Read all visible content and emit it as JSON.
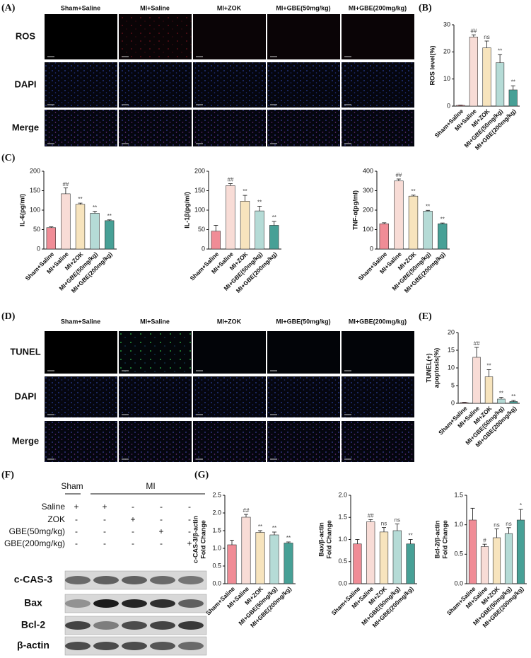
{
  "panels": {
    "A": "(A)",
    "B": "(B)",
    "C": "(C)",
    "D": "(D)",
    "E": "(E)",
    "F": "(F)",
    "G": "(G)"
  },
  "micrographs": [
    {
      "columns": [
        "Sham+Saline",
        "MI+Saline",
        "MI+ZOK",
        "MI+GBE(50mg/kg)",
        "MI+GBE(200mg/kg)"
      ],
      "rows": [
        "ROS",
        "DAPI",
        "Merge"
      ]
    },
    {
      "columns": [
        "Sham+Saline",
        "MI+Saline",
        "MI+ZOK",
        "MI+GBE(50mg/kg)",
        "MI+GBE(200mg/kg)"
      ],
      "rows": [
        "TUNEL",
        "DAPI",
        "Merge"
      ]
    }
  ],
  "western_blot": {
    "groups": [
      "Sham",
      "MI"
    ],
    "treatments": [
      "Saline",
      "ZOK",
      "GBE(50mg/kg)",
      "GBE(200mg/kg)"
    ],
    "matrix": [
      [
        "+",
        "+",
        "-",
        "-",
        "-"
      ],
      [
        "-",
        "-",
        "+",
        "-",
        "-"
      ],
      [
        "-",
        "-",
        "-",
        "+",
        "-"
      ],
      [
        "-",
        "-",
        "-",
        "-",
        "+"
      ]
    ],
    "proteins": [
      "c-CAS-3",
      "Bax",
      "Bcl-2",
      "β-actin"
    ]
  },
  "chart_data": [
    {
      "type": "bar",
      "ylabel": [
        "ROS level(%)"
      ],
      "categories": [
        "Sham+Saline",
        "MI+Saline",
        "MI+ZOK",
        "MI+GBE(50mg/kg)",
        "MI+GBE(200mg/kg)"
      ],
      "values": [
        0.3,
        25.5,
        21.5,
        16,
        6
      ],
      "errors": [
        0.1,
        0.8,
        2.5,
        3,
        1.5
      ],
      "annotations": [
        null,
        "##",
        "ns",
        "**",
        "**"
      ],
      "colors": [
        "#f08c96",
        "#f8dcd6",
        "#f7e4bd",
        "#b5dbd6",
        "#47a096"
      ],
      "ylim": [
        0,
        30
      ],
      "yticks": [
        0,
        10,
        20,
        30
      ]
    },
    {
      "type": "bar",
      "ylabel": [
        "IL-6(pg/ml)"
      ],
      "categories": [
        "Sham+Saline",
        "MI+Saline",
        "MI+ZOK",
        "MI+GBE(50mg/kg)",
        "MI+GBE(200mg/kg)"
      ],
      "values": [
        55,
        142,
        115,
        92,
        73
      ],
      "errors": [
        2,
        15,
        3,
        5,
        2
      ],
      "annotations": [
        null,
        "##",
        "**",
        "**",
        "**"
      ],
      "colors": [
        "#f08c96",
        "#f8dcd6",
        "#f7e4bd",
        "#b5dbd6",
        "#47a096"
      ],
      "ylim": [
        0,
        200
      ],
      "yticks": [
        0,
        50,
        100,
        150,
        200
      ]
    },
    {
      "type": "bar",
      "ylabel": [
        "IL-1β(pg/ml)"
      ],
      "categories": [
        "Sham+Saline",
        "MI+Saline",
        "MI+ZOK",
        "MI+GBE(50mg/kg)",
        "MI+GBE(200mg/kg)"
      ],
      "values": [
        46,
        163,
        123,
        98,
        61
      ],
      "errors": [
        15,
        5,
        15,
        12,
        10
      ],
      "annotations": [
        null,
        "##",
        "**",
        "**",
        "**"
      ],
      "colors": [
        "#f08c96",
        "#f8dcd6",
        "#f7e4bd",
        "#b5dbd6",
        "#47a096"
      ],
      "ylim": [
        0,
        200
      ],
      "yticks": [
        0,
        50,
        100,
        150,
        200
      ]
    },
    {
      "type": "bar",
      "ylabel": [
        "TNF-α(pg/ml)"
      ],
      "categories": [
        "Sham+Saline",
        "MI+Saline",
        "MI+ZOK",
        "MI+GBE(50mg/kg)",
        "MI+GBE(200mg/kg)"
      ],
      "values": [
        130,
        350,
        272,
        195,
        130
      ],
      "errors": [
        5,
        10,
        5,
        4,
        4
      ],
      "annotations": [
        null,
        "##",
        "**",
        "**",
        "**"
      ],
      "colors": [
        "#f08c96",
        "#f8dcd6",
        "#f7e4bd",
        "#b5dbd6",
        "#47a096"
      ],
      "ylim": [
        0,
        400
      ],
      "yticks": [
        0,
        100,
        200,
        300,
        400
      ]
    },
    {
      "type": "bar",
      "ylabel": [
        "TUNEL(+)",
        "apoptosis(%)"
      ],
      "categories": [
        "Sham+Saline",
        "MI+Saline",
        "MI+ZOK",
        "MI+GBE(50mg/kg)",
        "MI+GBE(200mg/kg)"
      ],
      "values": [
        0.2,
        13,
        7.5,
        1.2,
        0.5
      ],
      "errors": [
        0.1,
        2.8,
        2,
        0.5,
        0.3
      ],
      "annotations": [
        null,
        "##",
        "**",
        "**",
        "**"
      ],
      "colors": [
        "#f08c96",
        "#f8dcd6",
        "#f7e4bd",
        "#b5dbd6",
        "#47a096"
      ],
      "ylim": [
        0,
        20
      ],
      "yticks": [
        0,
        5,
        10,
        15,
        20
      ]
    },
    {
      "type": "bar",
      "ylabel": [
        "c-CAS-3/β-actin",
        "Fold Change"
      ],
      "categories": [
        "Sham+Saline",
        "MI+Saline",
        "MI+ZOK",
        "MI+GBE(50mg/kg)",
        "MI+GBE(200mg/kg)"
      ],
      "values": [
        1.1,
        1.88,
        1.45,
        1.38,
        1.15
      ],
      "errors": [
        0.13,
        0.08,
        0.05,
        0.08,
        0.03
      ],
      "annotations": [
        null,
        "##",
        "**",
        "**",
        "**"
      ],
      "colors": [
        "#f08c96",
        "#f8dcd6",
        "#f7e4bd",
        "#b5dbd6",
        "#47a096"
      ],
      "ylim": [
        0,
        2.5
      ],
      "yticks": [
        {
          "value": 0,
          "label": "0.0"
        },
        0.5,
        {
          "value": 1,
          "label": "1.0"
        },
        1.5,
        {
          "value": 2,
          "label": "2.0"
        },
        2.5
      ]
    },
    {
      "type": "bar",
      "ylabel": [
        "Bax/β-actin",
        "Fold Change"
      ],
      "categories": [
        "Sham+Saline",
        "MI+Saline",
        "MI+ZOK",
        "MI+GBE(50mg/kg)",
        "MI+GBE(200mg/kg)"
      ],
      "values": [
        0.9,
        1.4,
        1.17,
        1.2,
        0.9
      ],
      "errors": [
        0.1,
        0.05,
        0.1,
        0.15,
        0.1
      ],
      "annotations": [
        null,
        "##",
        "ns",
        "ns",
        "**"
      ],
      "colors": [
        "#f08c96",
        "#f8dcd6",
        "#f7e4bd",
        "#b5dbd6",
        "#47a096"
      ],
      "ylim": [
        0,
        2
      ],
      "yticks": [
        {
          "value": 0,
          "label": "0.0"
        },
        0.5,
        {
          "value": 1,
          "label": "1.0"
        },
        1.5,
        {
          "value": 2,
          "label": "2.0"
        }
      ]
    },
    {
      "type": "bar",
      "ylabel": [
        "Bcl-2/β-actin",
        "Fold Change"
      ],
      "categories": [
        "Sham+Saline",
        "MI+Saline",
        "MI+ZOK",
        "MI+GBE(50mg/kg)",
        "MI+GBE(200mg/kg)"
      ],
      "values": [
        1.08,
        0.63,
        0.78,
        0.85,
        1.08
      ],
      "errors": [
        0.2,
        0.04,
        0.15,
        0.1,
        0.18
      ],
      "annotations": [
        null,
        "#",
        "ns",
        "ns",
        "*"
      ],
      "colors": [
        "#f08c96",
        "#f8dcd6",
        "#f7e4bd",
        "#b5dbd6",
        "#47a096"
      ],
      "ylim": [
        0,
        1.5
      ],
      "yticks": [
        {
          "value": 0,
          "label": "0.0"
        },
        0.5,
        {
          "value": 1,
          "label": "1.0"
        },
        1.5
      ]
    }
  ]
}
